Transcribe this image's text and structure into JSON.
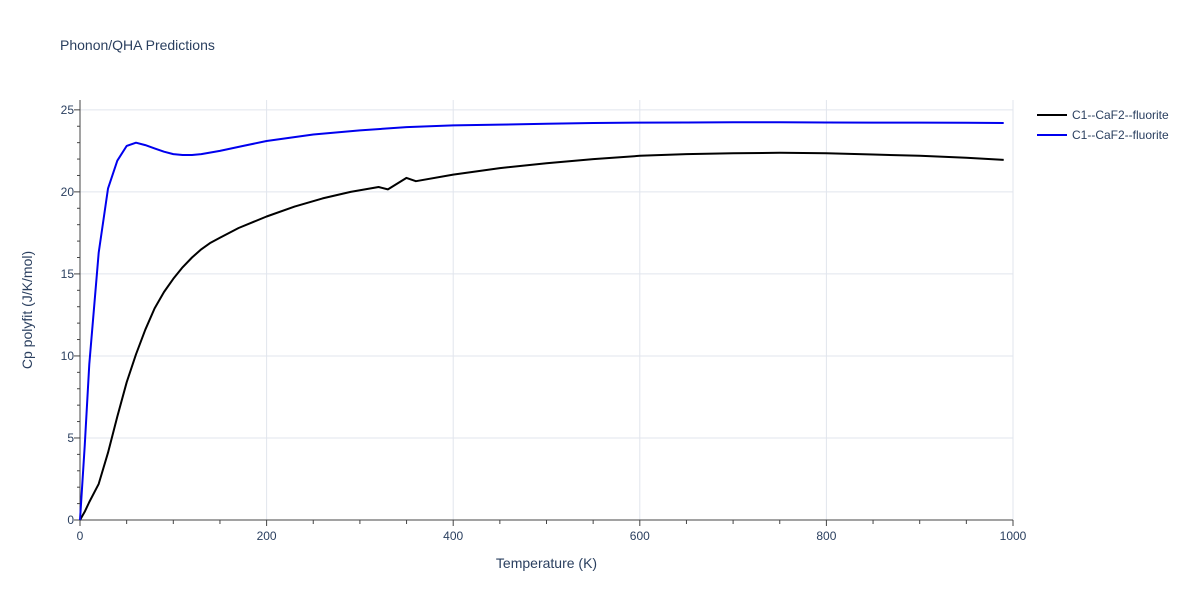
{
  "chart_data": {
    "type": "line",
    "title": "Phonon/QHA Predictions",
    "xlabel": "Temperature (K)",
    "ylabel": "Cp polyfit (J/K/mol)",
    "xlim": [
      0,
      1000
    ],
    "ylim": [
      0,
      25.6
    ],
    "xticks": [
      0,
      200,
      400,
      600,
      800,
      1000
    ],
    "yticks": [
      0,
      5,
      10,
      15,
      20,
      25
    ],
    "grid": true,
    "legend_position": "top-right",
    "series": [
      {
        "name": "C1--CaF2--fluorite",
        "color": "#000000",
        "x": [
          0,
          5,
          10,
          20,
          30,
          40,
          50,
          60,
          70,
          80,
          90,
          100,
          110,
          120,
          130,
          140,
          150,
          170,
          200,
          230,
          260,
          290,
          320,
          330,
          350,
          360,
          400,
          450,
          500,
          550,
          600,
          650,
          700,
          750,
          800,
          850,
          900,
          950,
          990
        ],
        "y": [
          0,
          0.5,
          1.1,
          2.2,
          4.1,
          6.3,
          8.4,
          10.1,
          11.6,
          12.9,
          13.9,
          14.7,
          15.4,
          16.0,
          16.5,
          16.9,
          17.2,
          17.8,
          18.5,
          19.1,
          19.6,
          20.0,
          20.3,
          20.15,
          20.85,
          20.65,
          21.05,
          21.45,
          21.75,
          22.0,
          22.2,
          22.3,
          22.35,
          22.38,
          22.35,
          22.28,
          22.2,
          22.08,
          21.95
        ]
      },
      {
        "name": "C1--CaF2--fluorite",
        "color": "#0000ee",
        "x": [
          0,
          5,
          10,
          20,
          30,
          40,
          50,
          60,
          70,
          80,
          90,
          100,
          110,
          120,
          130,
          140,
          150,
          175,
          200,
          225,
          250,
          300,
          350,
          400,
          450,
          500,
          550,
          600,
          650,
          700,
          750,
          800,
          850,
          900,
          950,
          990
        ],
        "y": [
          0,
          4.5,
          9.5,
          16.3,
          20.2,
          21.9,
          22.8,
          23.0,
          22.85,
          22.65,
          22.45,
          22.3,
          22.25,
          22.25,
          22.3,
          22.4,
          22.5,
          22.8,
          23.1,
          23.3,
          23.5,
          23.75,
          23.95,
          24.05,
          24.1,
          24.15,
          24.2,
          24.22,
          24.23,
          24.24,
          24.24,
          24.23,
          24.22,
          24.22,
          24.21,
          24.2
        ]
      }
    ]
  }
}
